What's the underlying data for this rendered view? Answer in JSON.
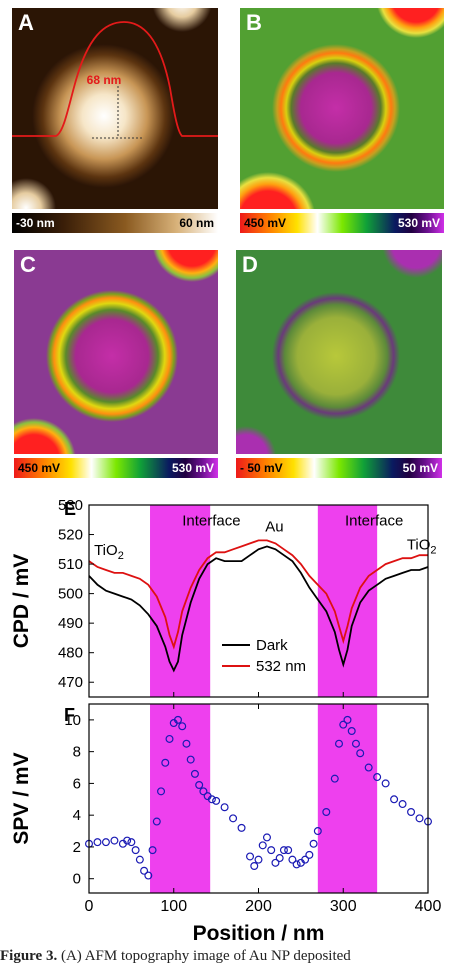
{
  "panels": {
    "a": {
      "letter": "A",
      "height_label": "68 nm",
      "scale_min": "-30 nm",
      "scale_max": "60 nm"
    },
    "b": {
      "letter": "B",
      "scale_min": "450 mV",
      "scale_max": "530 mV"
    },
    "c": {
      "letter": "C",
      "scale_min": "450 mV",
      "scale_max": "530 mV"
    },
    "d": {
      "letter": "D",
      "scale_min": "- 50 mV",
      "scale_max": "50 mV"
    }
  },
  "colors": {
    "dark_line": "#000000",
    "light_line": "#dd1111",
    "interface_band": "#ee40ee",
    "spv_markers": "#1a1ab4"
  },
  "chart_data": [
    {
      "type": "line",
      "panel_letter": "E",
      "ylabel": "CPD / mV",
      "xlim": [
        0,
        400
      ],
      "ylim": [
        465,
        530
      ],
      "yticks": [
        470,
        480,
        490,
        500,
        510,
        520,
        530
      ],
      "shaded_regions": [
        [
          72,
          143
        ],
        [
          270,
          340
        ]
      ],
      "annotations": [
        {
          "text": "TiO",
          "sub": "2",
          "x": 6,
          "y": 513
        },
        {
          "text": "Interface",
          "x": 110,
          "y": 523
        },
        {
          "text": "Au",
          "x": 208,
          "y": 521
        },
        {
          "text": "Interface",
          "x": 302,
          "y": 523
        },
        {
          "text": "TiO",
          "sub": "2",
          "x": 375,
          "y": 515
        }
      ],
      "legend": {
        "position": "bottom-center"
      },
      "series": [
        {
          "name": "Dark",
          "x": [
            0,
            10,
            20,
            30,
            40,
            50,
            60,
            70,
            80,
            90,
            95,
            100,
            105,
            110,
            120,
            130,
            140,
            150,
            160,
            170,
            180,
            190,
            200,
            210,
            220,
            230,
            240,
            250,
            260,
            270,
            280,
            290,
            295,
            300,
            305,
            310,
            320,
            330,
            340,
            350,
            360,
            370,
            380,
            390,
            400
          ],
          "y": [
            506,
            503,
            501,
            500,
            499,
            498,
            496,
            493,
            489,
            482,
            477,
            474,
            477,
            486,
            497,
            505,
            510,
            512,
            511,
            511,
            511,
            513,
            515,
            516,
            515,
            513,
            511,
            507,
            502,
            498,
            494,
            487,
            481,
            476,
            481,
            489,
            497,
            501,
            503,
            505,
            506,
            507,
            508,
            508,
            509
          ]
        },
        {
          "name": "532 nm",
          "x": [
            0,
            10,
            20,
            30,
            40,
            50,
            60,
            70,
            80,
            90,
            95,
            100,
            105,
            110,
            120,
            130,
            140,
            150,
            160,
            170,
            180,
            190,
            200,
            210,
            220,
            230,
            240,
            250,
            260,
            270,
            280,
            290,
            295,
            300,
            305,
            310,
            320,
            330,
            340,
            350,
            360,
            370,
            380,
            390,
            400
          ],
          "y": [
            511,
            509,
            508,
            507,
            507,
            506,
            505,
            503,
            499,
            492,
            486,
            482,
            487,
            494,
            502,
            508,
            512,
            514,
            514,
            515,
            516,
            517,
            518,
            518,
            517,
            515,
            513,
            510,
            506,
            503,
            500,
            494,
            489,
            484,
            489,
            495,
            502,
            506,
            508,
            510,
            511,
            512,
            512,
            513,
            513
          ]
        }
      ]
    },
    {
      "type": "scatter",
      "panel_letter": "F",
      "xlabel": "Position / nm",
      "ylabel": "SPV / mV",
      "xlim": [
        0,
        400
      ],
      "ylim": [
        -0.9,
        11
      ],
      "xticks": [
        0,
        100,
        200,
        300,
        400
      ],
      "yticks": [
        0,
        2,
        4,
        6,
        8,
        10
      ],
      "shaded_regions": [
        [
          72,
          143
        ],
        [
          270,
          340
        ]
      ],
      "series": [
        {
          "x": [
            0,
            10,
            20,
            30,
            40,
            45,
            50,
            55,
            60,
            65,
            70,
            75,
            80,
            85,
            90,
            95,
            100,
            105,
            110,
            115,
            120,
            125,
            130,
            135,
            140,
            145,
            150,
            160,
            170,
            180,
            190,
            195,
            200,
            205,
            210,
            215,
            220,
            225,
            230,
            235,
            240,
            245,
            250,
            255,
            260,
            265,
            270,
            280,
            290,
            295,
            300,
            305,
            310,
            315,
            320,
            330,
            340,
            350,
            360,
            370,
            380,
            390,
            400
          ],
          "y": [
            2.2,
            2.3,
            2.3,
            2.4,
            2.2,
            2.4,
            2.3,
            1.8,
            1.2,
            0.5,
            0.2,
            1.8,
            3.6,
            5.5,
            7.3,
            8.8,
            9.8,
            10.0,
            9.6,
            8.5,
            7.5,
            6.6,
            5.9,
            5.5,
            5.2,
            5.0,
            4.9,
            4.5,
            3.8,
            3.2,
            1.4,
            0.8,
            1.2,
            2.1,
            2.6,
            1.8,
            1.0,
            1.3,
            1.8,
            1.8,
            1.2,
            0.9,
            1.0,
            1.2,
            1.5,
            2.2,
            3.0,
            4.2,
            6.3,
            8.5,
            9.7,
            10.0,
            9.3,
            8.5,
            7.9,
            7.0,
            6.4,
            6.0,
            5.0,
            4.7,
            4.2,
            3.8,
            3.6
          ]
        }
      ]
    }
  ],
  "caption": {
    "label": "Figure 3.",
    "text": "(A) AFM topography image of Au NP deposited"
  }
}
